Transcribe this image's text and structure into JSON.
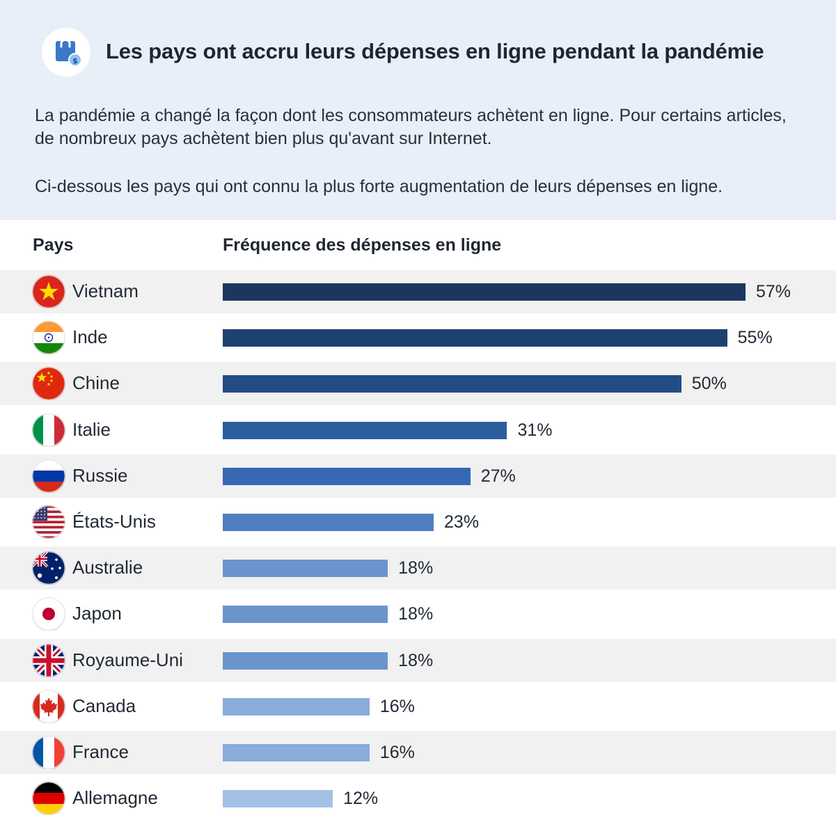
{
  "header": {
    "logo_icon": "shopping-bag-dollar-icon",
    "title": "Les pays ont accru leurs dépenses en ligne pendant la pandémie",
    "intro": "La pandémie a changé la façon dont les consommateurs achètent en ligne. Pour certains articles, de nombreux pays achètent bien plus qu'avant sur Internet.",
    "intro2": "Ci-dessous les pays qui ont connu la plus forte augmentation de leurs dépenses en ligne."
  },
  "columns": {
    "country": "Pays",
    "value": "Fréquence des dépenses en ligne"
  },
  "chart_data": {
    "type": "bar",
    "orientation": "horizontal",
    "title": "Les pays ont accru leurs dépenses en ligne pendant la pandémie",
    "xlabel": "Fréquence des dépenses en ligne",
    "ylabel": "Pays",
    "unit": "%",
    "xlim": [
      0,
      57
    ],
    "grid": false,
    "categories": [
      "Vietnam",
      "Inde",
      "Chine",
      "Italie",
      "Russie",
      "États-Unis",
      "Australie",
      "Japon",
      "Royaume-Uni",
      "Canada",
      "France",
      "Allemagne"
    ],
    "values": [
      57,
      55,
      50,
      31,
      27,
      23,
      18,
      18,
      18,
      16,
      16,
      12
    ],
    "labels": [
      "57%",
      "55%",
      "50%",
      "31%",
      "27%",
      "23%",
      "18%",
      "18%",
      "18%",
      "16%",
      "16%",
      "12%"
    ],
    "flags": [
      "vietnam-flag-icon",
      "india-flag-icon",
      "china-flag-icon",
      "italy-flag-icon",
      "russia-flag-icon",
      "usa-flag-icon",
      "australia-flag-icon",
      "japan-flag-icon",
      "uk-flag-icon",
      "canada-flag-icon",
      "france-flag-icon",
      "germany-flag-icon"
    ],
    "colors": [
      "#1d3660",
      "#1f4170",
      "#234c84",
      "#2b5e9f",
      "#3569b3",
      "#4f7fc0",
      "#6a95cc",
      "#6a95cc",
      "#6a95cc",
      "#89acd9",
      "#89acd9",
      "#a3c1e5"
    ]
  }
}
